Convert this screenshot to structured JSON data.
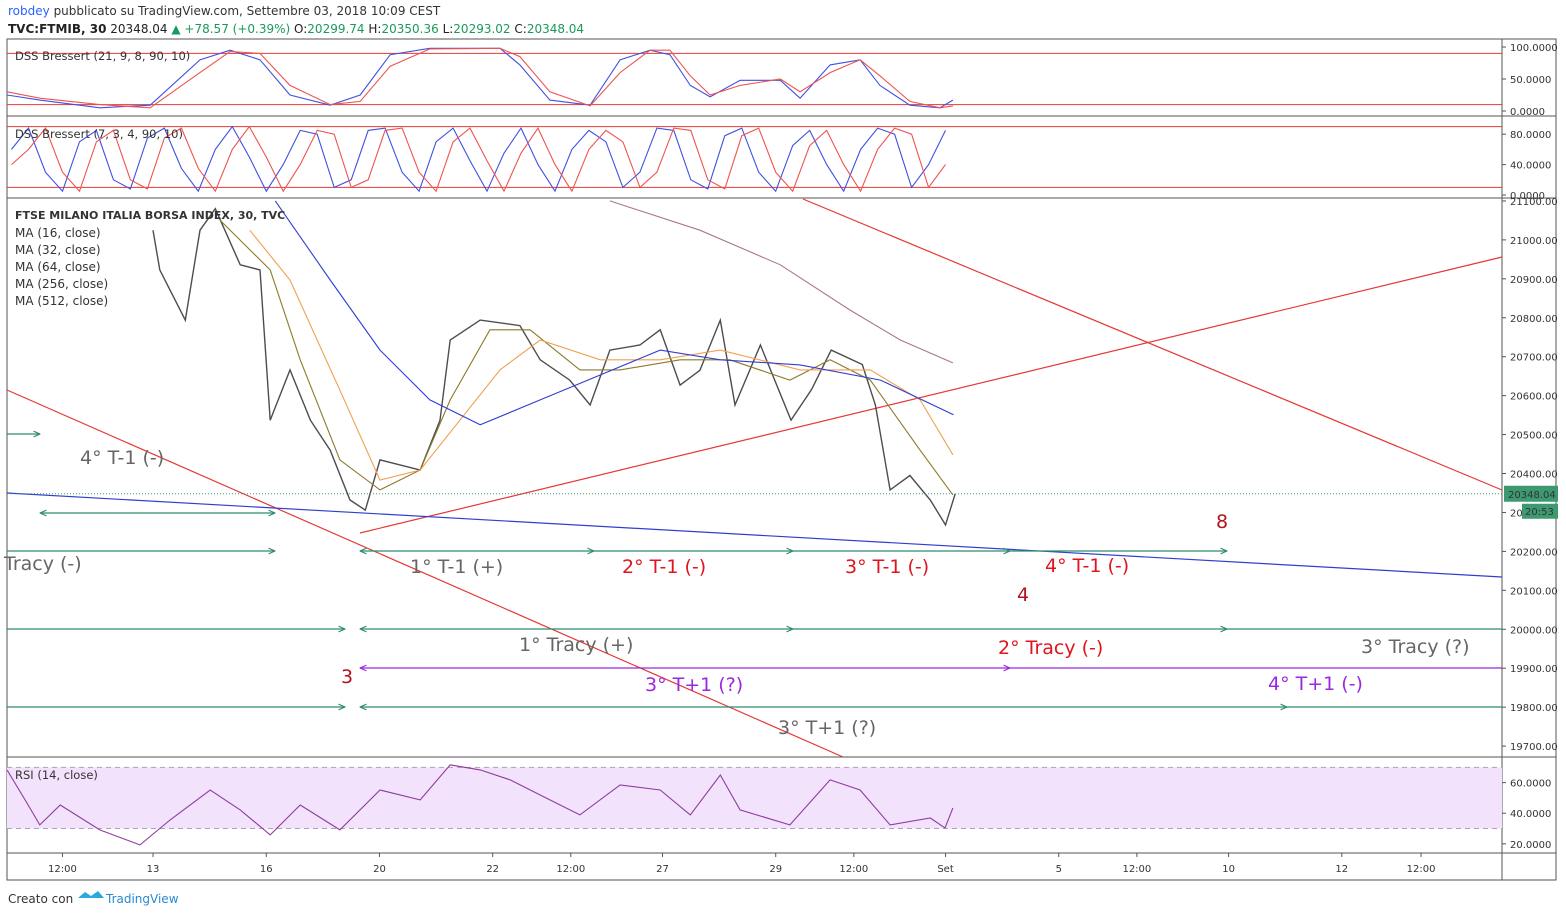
{
  "header": {
    "user": "robdey",
    "published": "pubblicato su TradingView.com, Settembre 03, 2018 10:09 CEST",
    "symbol": "TVC:FTMIB, 30",
    "last": "20348.04",
    "change": "▲ +78.57 (+0.39%)",
    "ohlc": [
      {
        "label": "O:",
        "value": "20299.74"
      },
      {
        "label": "H:",
        "value": "20350.36"
      },
      {
        "label": "L:",
        "value": "20293.02"
      },
      {
        "label": "C:",
        "value": "20348.04"
      }
    ]
  },
  "chart_data": [
    {
      "type": "line",
      "title": "DSS Bressert (21, 9, 8, 90, 10)",
      "xlim": [
        -2.58,
        23.83
      ],
      "ylim": [
        -7.8,
        112.5
      ],
      "yticks": [
        {
          "value": 100,
          "label": "100.0000"
        },
        {
          "value": 50,
          "label": "50.0000"
        },
        {
          "value": 0,
          "label": "0.0000"
        }
      ],
      "levels": [
        90,
        10
      ],
      "level_color": "#e53935",
      "x": [
        -2.58,
        -2.0,
        -0.94,
        -0.05,
        0.83,
        1.36,
        1.89,
        2.42,
        3.13,
        3.66,
        4.19,
        4.89,
        6.13,
        6.48,
        7.01,
        7.72,
        8.25,
        8.78,
        9.13,
        9.49,
        9.84,
        10.37,
        11.08,
        11.43,
        11.96,
        12.49,
        12.84,
        13.37,
        13.9,
        14.13
      ],
      "series": [
        {
          "color": "#3f51e0",
          "values": [
            25,
            17,
            5,
            9,
            80,
            95,
            80,
            25,
            9,
            25,
            88,
            98,
            98,
            72,
            17,
            9,
            80,
            95,
            88,
            40,
            22,
            48,
            48,
            20,
            72,
            80,
            40,
            9,
            5,
            17
          ]
        },
        {
          "color": "#ef5350",
          "values": [
            30,
            20,
            10,
            5,
            60,
            93,
            90,
            40,
            10,
            15,
            70,
            97,
            98,
            85,
            30,
            8,
            60,
            95,
            95,
            55,
            25,
            40,
            50,
            30,
            60,
            80,
            55,
            15,
            5,
            8
          ]
        }
      ]
    },
    {
      "type": "line",
      "title": "DSS Bressert (7, 3, 4, 90, 10)",
      "xlim": [
        -2.58,
        23.83
      ],
      "ylim": [
        -3.9,
        102.6
      ],
      "yticks": [
        {
          "value": 80,
          "label": "80.0000"
        },
        {
          "value": 40,
          "label": "40.0000"
        },
        {
          "value": 0,
          "label": "0.0000"
        }
      ],
      "levels": [
        90,
        10
      ],
      "level_color": "#e53935",
      "x": [
        -2.5,
        -2.2,
        -1.9,
        -1.6,
        -1.3,
        -1.0,
        -0.7,
        -0.4,
        -0.1,
        0.2,
        0.5,
        0.8,
        1.1,
        1.4,
        1.7,
        2.0,
        2.3,
        2.6,
        2.9,
        3.2,
        3.5,
        3.8,
        4.1,
        4.4,
        4.7,
        5.0,
        5.3,
        5.6,
        5.9,
        6.2,
        6.5,
        6.8,
        7.1,
        7.4,
        7.7,
        8.0,
        8.3,
        8.6,
        8.9,
        9.2,
        9.5,
        9.8,
        10.1,
        10.4,
        10.7,
        11.0,
        11.3,
        11.6,
        11.9,
        12.2,
        12.5,
        12.8,
        13.1,
        13.4,
        13.7,
        14.0
      ],
      "series": [
        {
          "color": "#3f51e0",
          "values": [
            60,
            88,
            30,
            5,
            70,
            85,
            20,
            8,
            75,
            88,
            35,
            5,
            60,
            90,
            50,
            5,
            40,
            85,
            80,
            10,
            20,
            85,
            88,
            30,
            5,
            70,
            88,
            45,
            5,
            55,
            88,
            40,
            5,
            60,
            85,
            70,
            10,
            30,
            88,
            85,
            20,
            8,
            78,
            88,
            30,
            5,
            65,
            85,
            40,
            5,
            60,
            88,
            80,
            10,
            40,
            85
          ]
        },
        {
          "color": "#ef5350",
          "values": [
            40,
            60,
            88,
            30,
            5,
            70,
            85,
            20,
            8,
            75,
            88,
            35,
            5,
            60,
            90,
            50,
            5,
            40,
            85,
            80,
            10,
            20,
            85,
            88,
            30,
            5,
            70,
            88,
            45,
            5,
            55,
            88,
            40,
            5,
            60,
            85,
            70,
            10,
            30,
            88,
            85,
            20,
            8,
            78,
            88,
            30,
            5,
            65,
            85,
            40,
            5,
            60,
            88,
            80,
            10,
            40
          ]
        }
      ]
    },
    {
      "type": "line",
      "title": "FTSE MILANO ITALIA BORSA INDEX, 30, TVC",
      "xlim": [
        -2.58,
        23.83
      ],
      "ylim": [
        19672,
        21105
      ],
      "yticks": [
        {
          "value": 21100,
          "label": "21100.00"
        },
        {
          "value": 21000,
          "label": "21000.00"
        },
        {
          "value": 20900,
          "label": "20900.00"
        },
        {
          "value": 20800,
          "label": "20800.00"
        },
        {
          "value": 20700,
          "label": "20700.00"
        },
        {
          "value": 20600,
          "label": "20600.00"
        },
        {
          "value": 20500,
          "label": "20500.00"
        },
        {
          "value": 20400,
          "label": "20400.00"
        },
        {
          "value": 20300,
          "label": "20300.00"
        },
        {
          "value": 20200,
          "label": "20200.00"
        },
        {
          "value": 20100,
          "label": "20100.00"
        },
        {
          "value": 20000,
          "label": "20000.00"
        },
        {
          "value": 19900,
          "label": "19900.00"
        },
        {
          "value": 19800,
          "label": "19800.00"
        },
        {
          "value": 19700,
          "label": "19700.00"
        }
      ],
      "last_color": "#3d9970",
      "countdown": "20:53",
      "series": [
        {
          "color": "#4d4d4d",
          "x": [
            0,
            0.12,
            0.57,
            0.83,
            1.1,
            1.54,
            1.89,
            2.07,
            2.42,
            2.78,
            3.13,
            3.48,
            3.75,
            4.01,
            4.72,
            5.07,
            5.25,
            5.78,
            6.48,
            6.84,
            7.36,
            7.72,
            8.07,
            8.6,
            8.96,
            9.31,
            9.66,
            10.02,
            10.28,
            10.73,
            11.27,
            11.63,
            11.98,
            12.53,
            12.76,
            13.02,
            13.37,
            13.73,
            14.0,
            14.17
          ],
          "values": [
            21025,
            20923,
            20794,
            21025,
            21080,
            20936,
            20923,
            20537,
            20666,
            20537,
            20460,
            20332,
            20306,
            20435,
            20409,
            20537,
            20743,
            20794,
            20780,
            20692,
            20640,
            20576,
            20717,
            20730,
            20769,
            20627,
            20665,
            20794,
            20576,
            20730,
            20537,
            20615,
            20717,
            20680,
            20576,
            20358,
            20395,
            20332,
            20268,
            20348.04
          ]
        },
        {
          "name": "MA (16, close)",
          "color": "#8b7a2a",
          "x": [
            1.18,
            2.07,
            2.6,
            3.3,
            4.01,
            4.72,
            5.25,
            5.95,
            6.66,
            7.54,
            8.25,
            9.31,
            10.19,
            11.25,
            11.96,
            12.67,
            13.55,
            14.13
          ],
          "values": [
            21051,
            20923,
            20692,
            20435,
            20358,
            20409,
            20589,
            20769,
            20769,
            20666,
            20666,
            20692,
            20692,
            20640,
            20692,
            20640,
            20460,
            20345
          ]
        },
        {
          "name": "MA (32, close)",
          "color": "#f0a050",
          "x": [
            1.71,
            2.42,
            3.3,
            4.01,
            4.72,
            5.42,
            6.13,
            6.84,
            7.9,
            8.96,
            10.02,
            11.43,
            12.67,
            13.55,
            14.13
          ],
          "values": [
            21025,
            20897,
            20614,
            20383,
            20409,
            20537,
            20666,
            20743,
            20692,
            20692,
            20717,
            20666,
            20666,
            20589,
            20448
          ]
        },
        {
          "name": "MA (64, close)",
          "color": "#2f3fd0",
          "x": [
            2.16,
            3.13,
            4.01,
            4.89,
            5.78,
            6.84,
            7.9,
            8.96,
            10.02,
            11.43,
            12.85,
            14.14
          ],
          "values": [
            21100,
            20897,
            20717,
            20589,
            20525,
            20589,
            20653,
            20717,
            20692,
            20679,
            20640,
            20551
          ]
        },
        {
          "name": "MA (256, close)",
          "color": "#a87890",
          "x": [
            8.07,
            9.66,
            11.08,
            12.31,
            13.2,
            14.13
          ],
          "values": [
            21100,
            21025,
            20936,
            20820,
            20743,
            20684
          ]
        },
        {
          "name": "MA (512, close)",
          "color": "#7a7a7a",
          "x": [],
          "values": []
        }
      ],
      "annotations": [
        {
          "text": "4° T-1 (-)",
          "color": "#666666"
        },
        {
          "text": "Tracy (-)",
          "color": "#666666"
        },
        {
          "text": "1° T-1 (+)",
          "color": "#666666"
        },
        {
          "text": "2° T-1 (-)",
          "color": "#e0141e"
        },
        {
          "text": "3° T-1 (-)",
          "color": "#e0141e"
        },
        {
          "text": "4° T-1 (-)",
          "color": "#e0141e"
        },
        {
          "text": "8",
          "color": "#b0141e"
        },
        {
          "text": "4",
          "color": "#b0141e"
        },
        {
          "text": "1° Tracy (+)",
          "color": "#666666"
        },
        {
          "text": "2° Tracy (-)",
          "color": "#e0141e"
        },
        {
          "text": "3° Tracy (?)",
          "color": "#666666"
        },
        {
          "text": "3",
          "color": "#b0141e"
        },
        {
          "text": "3° T+1 (?)",
          "color": "#9c27e0"
        },
        {
          "text": "4° T+1 (-)",
          "color": "#9c27e0"
        },
        {
          "text": "3° T+1 (?)",
          "color": "#666666"
        }
      ]
    },
    {
      "type": "line",
      "title": "RSI (14, close)",
      "xlim": [
        -2.58,
        23.83
      ],
      "ylim": [
        14.0,
        76.1
      ],
      "yticks": [
        {
          "value": 60,
          "label": "60.0000"
        },
        {
          "value": 40,
          "label": "40.0000"
        },
        {
          "value": 20,
          "label": "20.0000"
        }
      ],
      "levels": [
        70,
        30
      ],
      "level_color": "#b0a0b8",
      "band_fill": "#f3e2fb",
      "x": [
        -2.58,
        -2.26,
        -2.0,
        -1.64,
        -0.94,
        -0.23,
        0.3,
        1.01,
        1.54,
        2.07,
        2.6,
        3.3,
        4.01,
        4.72,
        5.25,
        5.78,
        6.31,
        7.01,
        7.54,
        8.25,
        8.96,
        9.49,
        10.02,
        10.37,
        11.25,
        11.96,
        12.49,
        13.02,
        13.73,
        13.99,
        14.13
      ],
      "series": [
        {
          "color": "#8e3e9e",
          "values": [
            68.3,
            48.7,
            32.4,
            45.4,
            29.1,
            19.3,
            35.6,
            55.2,
            42.2,
            25.8,
            45.4,
            29.1,
            55.2,
            48.7,
            71.6,
            68.3,
            61.8,
            48.7,
            38.9,
            58.5,
            55.2,
            38.9,
            65,
            42.2,
            32.4,
            61.8,
            55.2,
            32.4,
            36.9,
            30.4,
            43.5
          ]
        }
      ],
      "xticks": [
        {
          "value": -1.6,
          "label": "12:00"
        },
        {
          "value": 0,
          "label": "13"
        },
        {
          "value": 2,
          "label": "16"
        },
        {
          "value": 4,
          "label": "20"
        },
        {
          "value": 6,
          "label": "22"
        },
        {
          "value": 7.38,
          "label": "12:00"
        },
        {
          "value": 9,
          "label": "27"
        },
        {
          "value": 11,
          "label": "29"
        },
        {
          "value": 12.38,
          "label": "12:00"
        },
        {
          "value": 14,
          "label": "Set"
        },
        {
          "value": 16,
          "label": "5"
        },
        {
          "value": 17.38,
          "label": "12:00"
        },
        {
          "value": 19,
          "label": "10"
        },
        {
          "value": 21,
          "label": "12"
        },
        {
          "value": 22.4,
          "label": "12:00"
        }
      ]
    }
  ],
  "footer": {
    "made": "Creato con",
    "brand": "TradingView"
  }
}
